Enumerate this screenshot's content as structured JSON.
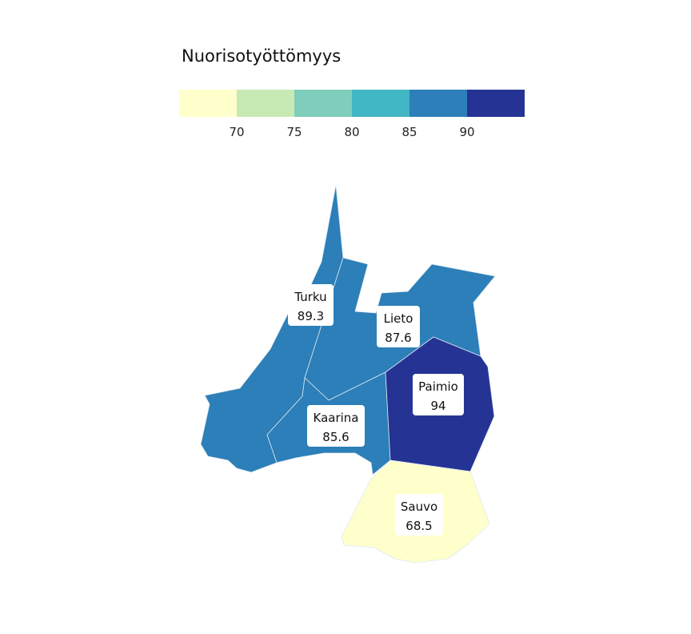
{
  "legend": {
    "title": "Nuorisotyöttömyys",
    "bins": [
      {
        "from": null,
        "to": 70,
        "color": "#ffffcc"
      },
      {
        "from": 70,
        "to": 75,
        "color": "#c7e9b4"
      },
      {
        "from": 75,
        "to": 80,
        "color": "#7fcdbb"
      },
      {
        "from": 80,
        "to": 85,
        "color": "#41b6c4"
      },
      {
        "from": 85,
        "to": 90,
        "color": "#2c7fb8"
      },
      {
        "from": 90,
        "to": null,
        "color": "#253494"
      }
    ],
    "ticks": [
      "70",
      "75",
      "80",
      "85",
      "90"
    ]
  },
  "regions": [
    {
      "name": "Turku",
      "value": "89.3",
      "num": 89.3
    },
    {
      "name": "Lieto",
      "value": "87.6",
      "num": 87.6
    },
    {
      "name": "Kaarina",
      "value": "85.6",
      "num": 85.6
    },
    {
      "name": "Paimio",
      "value": "94",
      "num": 94
    },
    {
      "name": "Sauvo",
      "value": "68.5",
      "num": 68.5
    }
  ],
  "colors": {
    "border": "#dfe8f2",
    "label_bg": "#ffffff"
  }
}
